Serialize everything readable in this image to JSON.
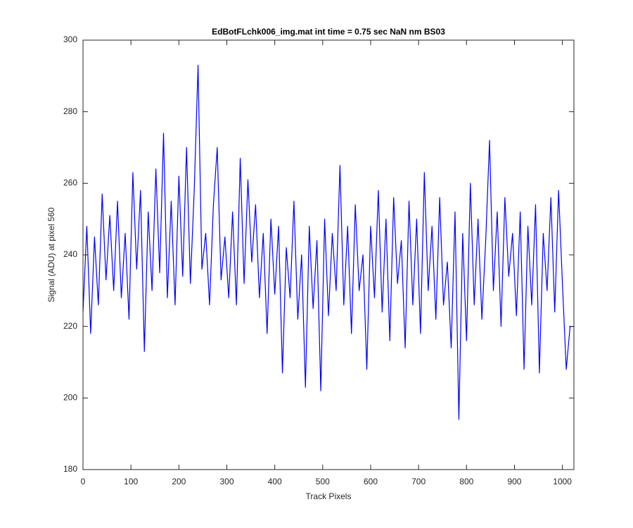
{
  "chart_data": {
    "type": "line",
    "title": "EdBotFLchk006_img.mat int time = 0.75 sec  NaN nm BS03",
    "x_label": "Track Pixels",
    "y_label": "Signal (ADU) at pixel 560",
    "color": "#0000ff",
    "x": [
      0,
      8,
      16,
      24,
      32,
      40,
      48,
      56,
      64,
      72,
      80,
      88,
      96,
      104,
      112,
      120,
      128,
      136,
      144,
      152,
      160,
      168,
      176,
      184,
      192,
      200,
      208,
      216,
      224,
      232,
      240,
      248,
      256,
      264,
      272,
      280,
      288,
      296,
      304,
      312,
      320,
      328,
      336,
      344,
      352,
      360,
      368,
      376,
      384,
      392,
      400,
      408,
      416,
      424,
      432,
      440,
      448,
      456,
      464,
      472,
      480,
      488,
      496,
      504,
      512,
      520,
      528,
      536,
      544,
      552,
      560,
      568,
      576,
      584,
      592,
      600,
      608,
      616,
      624,
      632,
      640,
      648,
      656,
      664,
      672,
      680,
      688,
      696,
      704,
      712,
      720,
      728,
      736,
      744,
      752,
      760,
      768,
      776,
      784,
      792,
      800,
      808,
      816,
      824,
      832,
      840,
      848,
      856,
      864,
      872,
      880,
      888,
      896,
      904,
      912,
      920,
      928,
      936,
      944,
      952,
      960,
      968,
      976,
      984,
      992,
      1000,
      1008,
      1016,
      1023
    ],
    "values": [
      224,
      248,
      218,
      245,
      226,
      257,
      233,
      251,
      230,
      255,
      228,
      246,
      222,
      263,
      236,
      258,
      213,
      252,
      230,
      264,
      235,
      274,
      228,
      255,
      226,
      262,
      234,
      270,
      232,
      258,
      293,
      236,
      246,
      226,
      254,
      270,
      233,
      245,
      228,
      252,
      226,
      267,
      232,
      261,
      238,
      254,
      228,
      246,
      218,
      250,
      229,
      248,
      207,
      242,
      228,
      255,
      222,
      240,
      203,
      248,
      225,
      244,
      202,
      250,
      223,
      246,
      230,
      265,
      226,
      248,
      218,
      254,
      230,
      240,
      208,
      248,
      228,
      258,
      224,
      250,
      216,
      256,
      232,
      244,
      214,
      255,
      226,
      250,
      218,
      263,
      230,
      248,
      222,
      256,
      226,
      238,
      214,
      252,
      194,
      246,
      216,
      260,
      226,
      250,
      222,
      244,
      272,
      230,
      252,
      220,
      256,
      234,
      246,
      223,
      252,
      208,
      248,
      226,
      254,
      207,
      246,
      230,
      256,
      224,
      258,
      232,
      208,
      220,
      220
    ],
    "xlim": [
      0,
      1024
    ],
    "ylim": [
      180,
      300
    ],
    "xticks": [
      0,
      100,
      200,
      300,
      400,
      500,
      600,
      700,
      800,
      900,
      1000
    ],
    "yticks": [
      180,
      200,
      220,
      240,
      260,
      280,
      300
    ]
  }
}
